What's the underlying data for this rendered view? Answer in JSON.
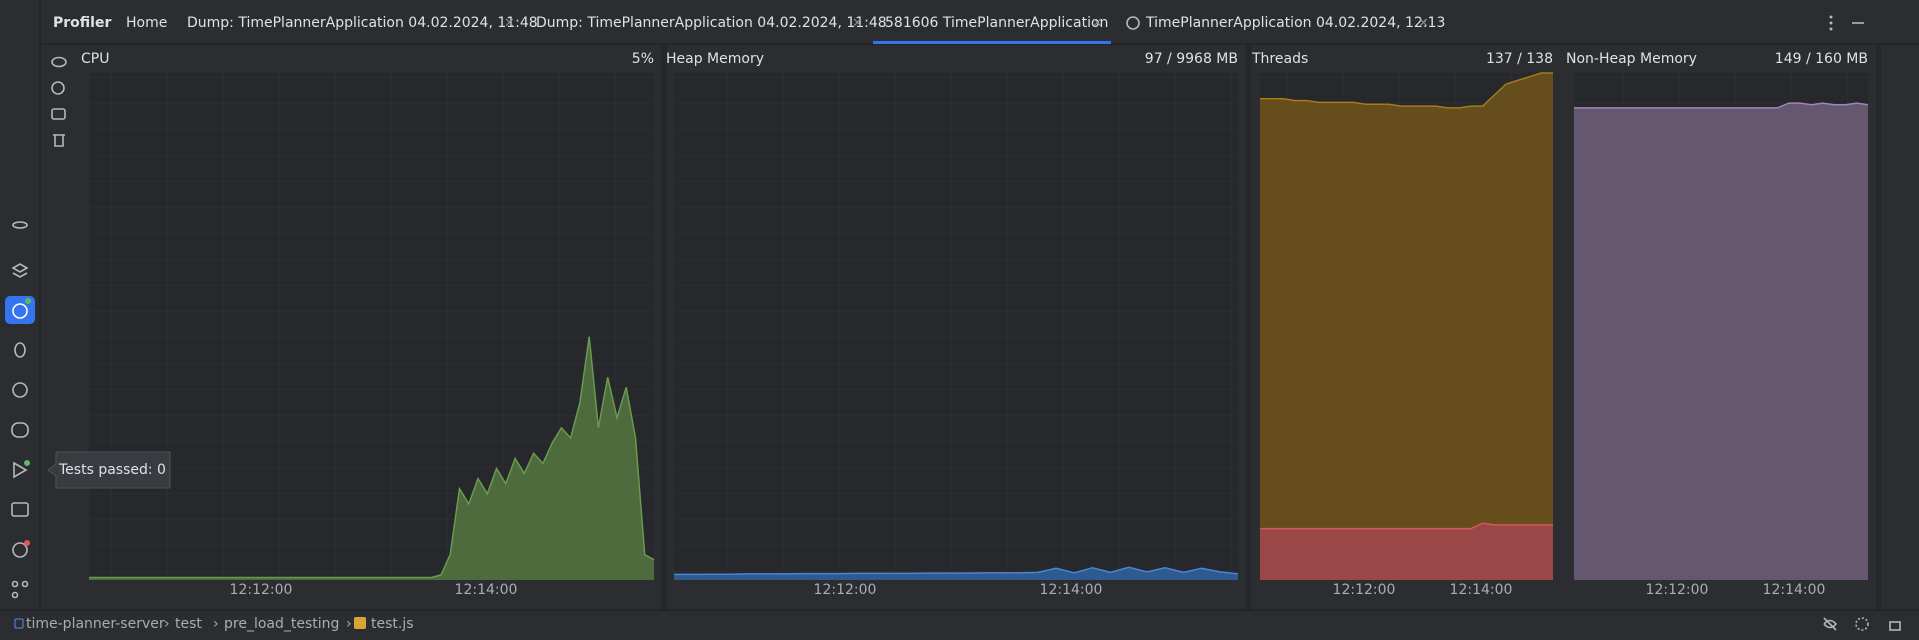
{
  "header": {
    "title": "Profiler",
    "tabs": [
      {
        "label": "Home"
      },
      {
        "label": "Dump: TimePlannerApplication 04.02.2024, 11:48",
        "close": "×"
      },
      {
        "label": "Dump: TimePlannerApplication 04.02.2024, 11:48",
        "close": "×"
      },
      {
        "label": "581606 TimePlannerApplication",
        "close": "×"
      },
      {
        "label": "TimePlannerApplication 04.02.2024, 12:13",
        "close": "×"
      }
    ]
  },
  "panels": [
    {
      "title": "CPU",
      "reading": "5%",
      "ylim": [
        0,
        100
      ],
      "times": [
        "12:12:00",
        "12:14:00"
      ],
      "series": [
        {
          "color": "#6a9a4f",
          "fill": "#4d6b3c",
          "values": [
            0.5,
            0.5,
            0.5,
            0.5,
            0.5,
            0.5,
            0.5,
            0.5,
            0.5,
            0.5,
            0.5,
            0.5,
            0.5,
            0.5,
            0.5,
            0.5,
            0.5,
            0.5,
            0.5,
            0.5,
            0.5,
            0.5,
            0.5,
            0.5,
            0.5,
            0.5,
            0.5,
            0.5,
            0.5,
            0.5,
            0.5,
            0.5,
            0.5,
            0.5,
            0.5,
            0.5,
            0.5,
            0.5,
            1,
            5,
            18,
            15,
            20,
            17,
            22,
            19,
            24,
            21,
            25,
            23,
            27,
            30,
            28,
            35,
            48,
            30,
            40,
            32,
            38,
            28,
            5,
            4
          ]
        }
      ]
    },
    {
      "title": "Heap Memory",
      "reading": "97 / 9968 MB",
      "ylim": [
        0,
        9968
      ],
      "times": [
        "12:12:00",
        "12:14:00"
      ],
      "series": [
        {
          "color": "#4a86d4",
          "fill": "#2f5a8f",
          "values": [
            110,
            110,
            115,
            115,
            120,
            120,
            120,
            125,
            125,
            125,
            130,
            130,
            130,
            130,
            135,
            135,
            135,
            140,
            140,
            140,
            150,
            230,
            140,
            240,
            150,
            250,
            160,
            240,
            150,
            230,
            160,
            120
          ]
        }
      ]
    },
    {
      "title": "Threads",
      "reading": "137 / 138",
      "ylim": [
        0,
        138
      ],
      "times": [
        "12:12:00",
        "12:14:00"
      ],
      "series": [
        {
          "color": "#a47c1c",
          "fill": "#654d1c",
          "values": [
            131,
            131,
            131,
            130.5,
            130.5,
            130,
            130,
            130,
            130,
            129.5,
            129.5,
            129.5,
            129,
            129,
            129,
            129,
            128.5,
            128.5,
            129,
            129,
            132,
            135,
            136,
            137,
            138,
            138
          ]
        },
        {
          "color": "#d05a5a",
          "fill": "#9a4747",
          "values": [
            14,
            14,
            14,
            14,
            14,
            14,
            14,
            14,
            14,
            14,
            14,
            14,
            14,
            14,
            14,
            14,
            14,
            14,
            14,
            15.5,
            15,
            15,
            15,
            15,
            15,
            15
          ]
        }
      ]
    },
    {
      "title": "Non-Heap Memory",
      "reading": "149 / 160 MB",
      "ylim": [
        0,
        160
      ],
      "times": [
        "12:12:00",
        "12:14:00"
      ],
      "series": [
        {
          "color": "#a283b8",
          "fill": "#65576f",
          "values": [
            149,
            149,
            149,
            149,
            149,
            149,
            149,
            149,
            149,
            149,
            149,
            149,
            149,
            149,
            149,
            149,
            149,
            149,
            149,
            150.5,
            150.5,
            150,
            150.5,
            150,
            150,
            150.5,
            150
          ]
        }
      ]
    }
  ],
  "tooltip": "Tests passed: 0",
  "breadcrumbs": [
    "time-planner-server",
    "test",
    "pre_load_testing",
    "test.js"
  ]
}
